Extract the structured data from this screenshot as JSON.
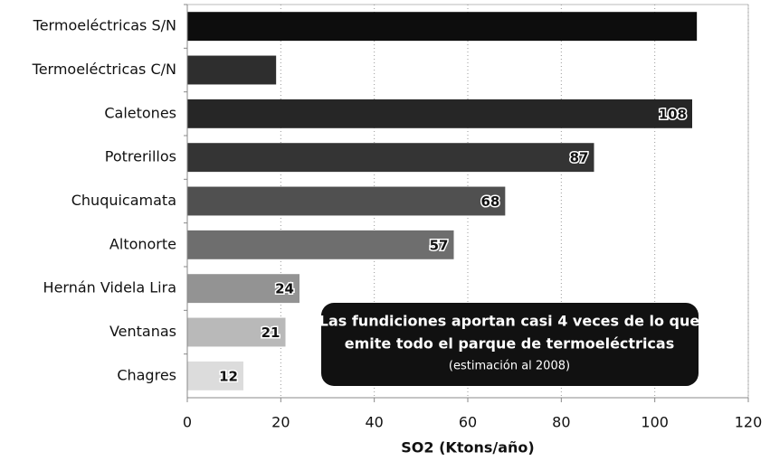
{
  "chart_data": {
    "type": "barh",
    "categories": [
      "Termoeléctricas S/N",
      "Termoeléctricas C/N",
      "Caletones",
      "Potrerillos",
      "Chuquicamata",
      "Altonorte",
      "Hernán Videla Lira",
      "Ventanas",
      "Chagres"
    ],
    "values": [
      109,
      19,
      108,
      87,
      68,
      57,
      24,
      21,
      12
    ],
    "value_labels": [
      null,
      null,
      "108",
      "87",
      "68",
      "57",
      "24",
      "21",
      "12"
    ],
    "colors": [
      "#0d0d0d",
      "#2e2e2e",
      "#262626",
      "#343434",
      "#505050",
      "#6e6e6e",
      "#939393",
      "#b9b9b9",
      "#dcdcdc"
    ],
    "xlim": [
      0,
      120
    ],
    "xticks": [
      0,
      20,
      40,
      60,
      80,
      100,
      120
    ],
    "grid": true,
    "xlabel": "SO2 (Ktons/año)",
    "annotation": [
      "Las fundiciones aportan casi 4 veces de lo que",
      "emite todo el parque de termoeléctricas",
      "(estimación al 2008)"
    ]
  }
}
